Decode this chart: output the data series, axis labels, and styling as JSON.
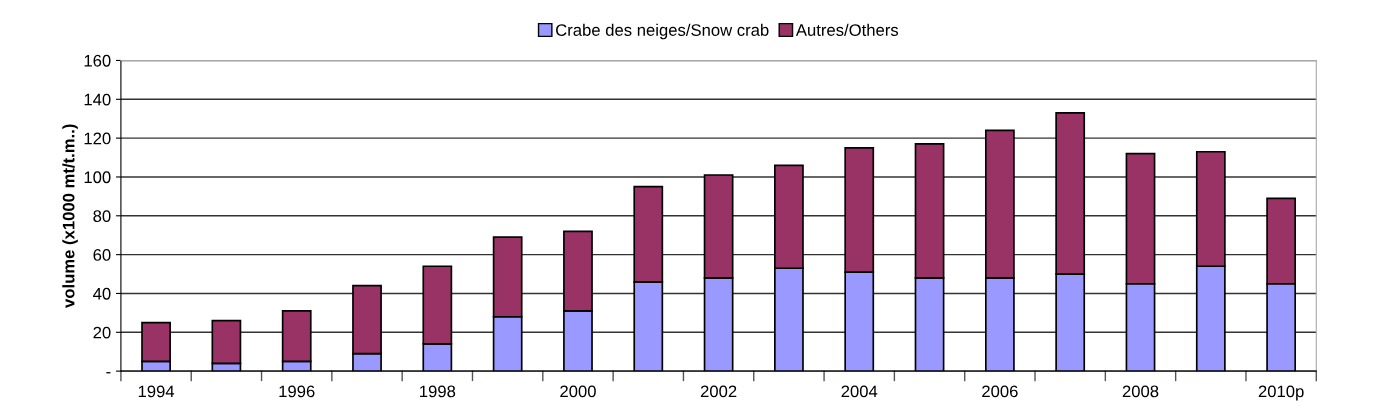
{
  "chart_data": {
    "type": "bar",
    "stacked": true,
    "ylabel": "volume (x1000 mt/t.m..)",
    "categories": [
      "1994",
      null,
      "1996",
      null,
      "1998",
      null,
      "2000",
      null,
      "2002",
      null,
      "2004",
      null,
      "2006",
      null,
      "2008",
      null,
      "2010p"
    ],
    "series": [
      {
        "name": "Crabe des neiges/Snow crab",
        "color": "#9999ff",
        "values": [
          5,
          4,
          5,
          9,
          14,
          28,
          31,
          46,
          48,
          53,
          51,
          48,
          48,
          50,
          45,
          54,
          45
        ]
      },
      {
        "name": "Autres/Others",
        "color": "#993366",
        "values": [
          20,
          22,
          26,
          35,
          40,
          41,
          41,
          49,
          53,
          53,
          64,
          69,
          76,
          83,
          67,
          59,
          44
        ]
      }
    ],
    "ylim": [
      0,
      160
    ],
    "yticks": [
      {
        "value": 0,
        "label": "-"
      },
      20,
      40,
      60,
      80,
      100,
      120,
      140,
      160
    ],
    "grid": "y",
    "legend": "top"
  }
}
